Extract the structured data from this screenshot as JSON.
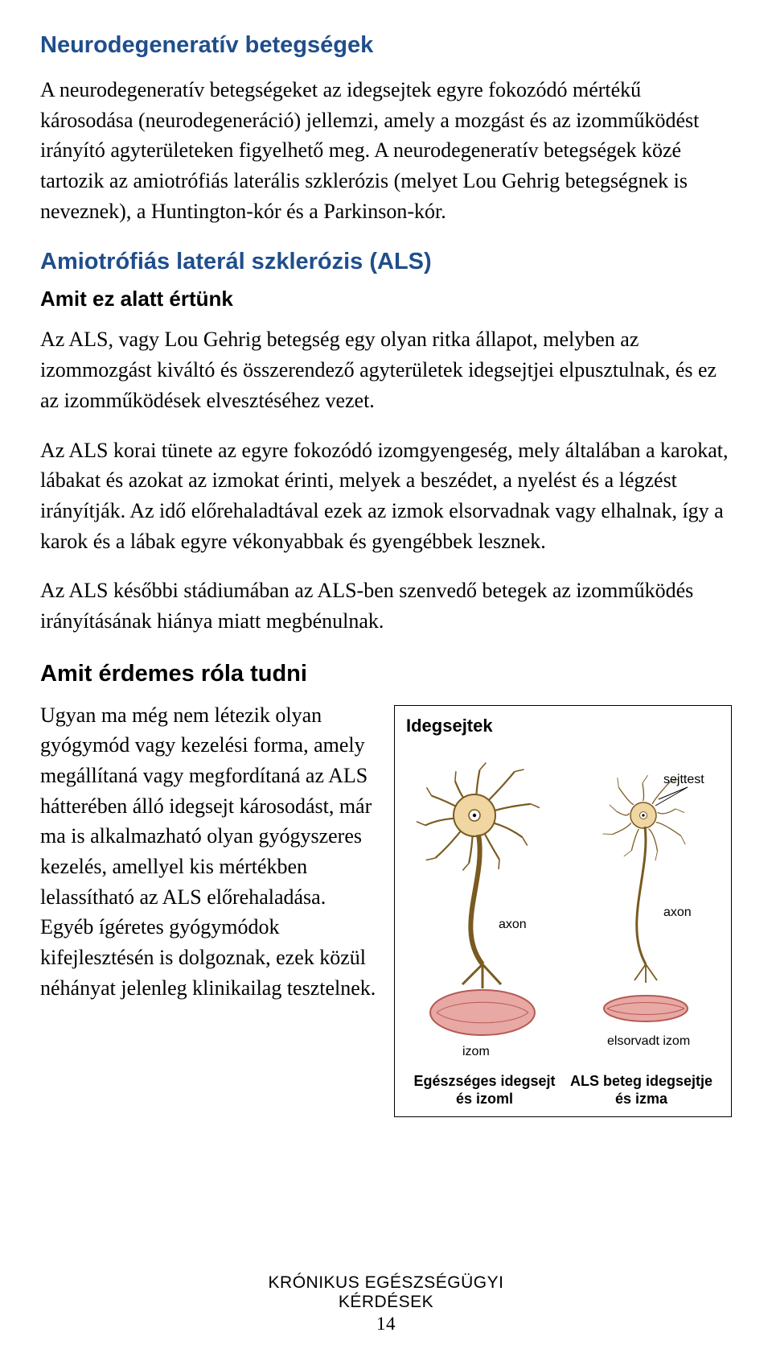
{
  "title": "Neurodegeneratív betegségek",
  "intro": "A neurodegeneratív betegségeket az idegsejtek egyre fokozódó mértékű károsodása (neurodegeneráció) jellemzi, amely a mozgást és az izomműködést irányító agyterületeken figyelhető meg. A neurodegeneratív betegségek közé tartozik az amiotrófiás laterális szklerózis (melyet Lou Gehrig betegségnek is neveznek), a Huntington-kór és a Parkinson-kór.",
  "als_heading": "Amiotrófiás laterál szklerózis (ALS)",
  "sub_what": "Amit ez alatt értünk",
  "als_p1": "Az ALS, vagy Lou Gehrig betegség egy olyan ritka állapot, melyben az izommozgást kiváltó és összerendező agyterületek idegsejtjei elpusztulnak, és ez az izomműködések elvesztéséhez vezet.",
  "als_p2": "Az ALS korai tünete az egyre fokozódó izomgyengeség, mely általában a karokat, lábakat és azokat az izmokat érinti, melyek a beszédet, a nyelést és a légzést irányítják. Az idő előrehaladtával ezek az izmok elsorvadnak vagy elhalnak, így a karok és a lábak egyre vékonyabbak és gyengébbek lesznek.",
  "als_p3": "Az ALS későbbi stádiumában az ALS-ben szenvedő betegek az izomműködés irányításának hiánya miatt megbénulnak.",
  "sub_know": "Amit érdemes róla tudni",
  "know_p": "Ugyan ma még nem létezik olyan gyógymód vagy kezelési forma, amely megállítaná vagy megfordítaná az ALS hátterében álló idegsejt károsodást, már ma is alkalmazható olyan gyógyszeres kezelés, amellyel kis mértékben lelassítható az ALS előrehaladása. Egyéb ígéretes gyógymódok kifejlesztésén is dolgoznak, ezek közül néhányat jelenleg klinikailag tesztelnek.",
  "figure": {
    "title": "Idegsejtek",
    "labels": {
      "cell_body": "sejttest",
      "axon_left": "axon",
      "axon_right": "axon",
      "muscle_left": "izom",
      "muscle_right": "elsorvadt izom"
    },
    "caption_left": "Egészséges idegsejt és izoml",
    "caption_right": "ALS beteg idegsejtje és izma",
    "colors": {
      "neuron_fill": "#efd6a2",
      "neuron_stroke": "#7a5a20",
      "muscle_fill": "#e8a8a3",
      "muscle_stroke": "#b55a55",
      "line": "#000000"
    }
  },
  "footer": {
    "line1": "KRÓNIKUS EGÉSZSÉGÜGYI",
    "line2": "KÉRDÉSEK",
    "page": "14"
  }
}
